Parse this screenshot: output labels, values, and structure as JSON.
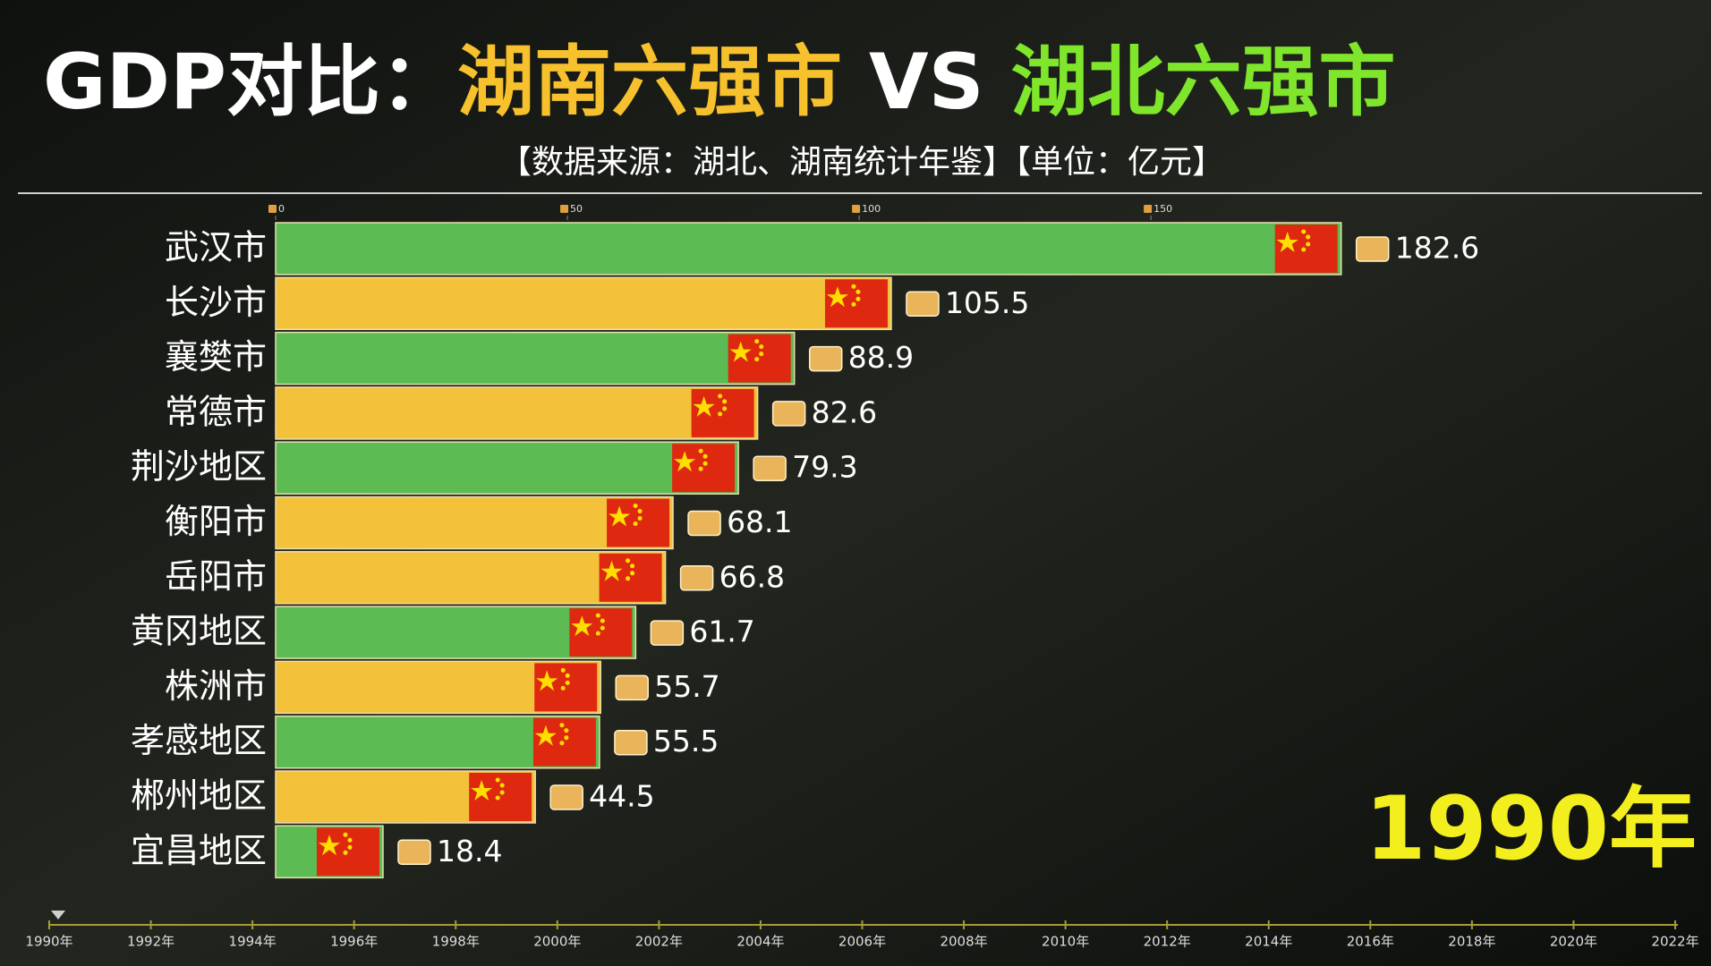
{
  "chart_data": {
    "type": "hbar",
    "title_parts": [
      {
        "text": "GDP对比：",
        "color": "#ffffff"
      },
      {
        "text": "湖南六强市",
        "color": "#f6c12c"
      },
      {
        "text": "VS",
        "color": "#ffffff"
      },
      {
        "text": "湖北六强市",
        "color": "#7fe62b"
      }
    ],
    "subtitle": "【数据来源：湖北、湖南统计年鉴】【单位：亿元】",
    "categories": [
      "武汉市",
      "长沙市",
      "襄樊市",
      "常德市",
      "荆沙地区",
      "衡阳市",
      "岳阳市",
      "黄冈地区",
      "株洲市",
      "孝感地区",
      "郴州地区",
      "宜昌地区"
    ],
    "values": [
      182.6,
      105.5,
      88.9,
      82.6,
      79.3,
      68.1,
      66.8,
      61.7,
      55.7,
      55.5,
      44.5,
      18.4
    ],
    "colors": [
      "#5cbb52",
      "#f4c23a",
      "#5cbb52",
      "#f4c23a",
      "#5cbb52",
      "#f4c23a",
      "#f4c23a",
      "#5cbb52",
      "#f4c23a",
      "#5cbb52",
      "#f4c23a",
      "#5cbb52"
    ],
    "xlim": [
      0,
      240
    ],
    "xticks": [
      0,
      50,
      100,
      150
    ],
    "current_year": "1990年",
    "timeline_labels": [
      "1990年",
      "1992年",
      "1994年",
      "1996年",
      "1998年",
      "2000年",
      "2002年",
      "2004年",
      "2006年",
      "2008年",
      "2010年",
      "2012年",
      "2014年",
      "2016年",
      "2018年",
      "2020年",
      "2022年"
    ]
  }
}
